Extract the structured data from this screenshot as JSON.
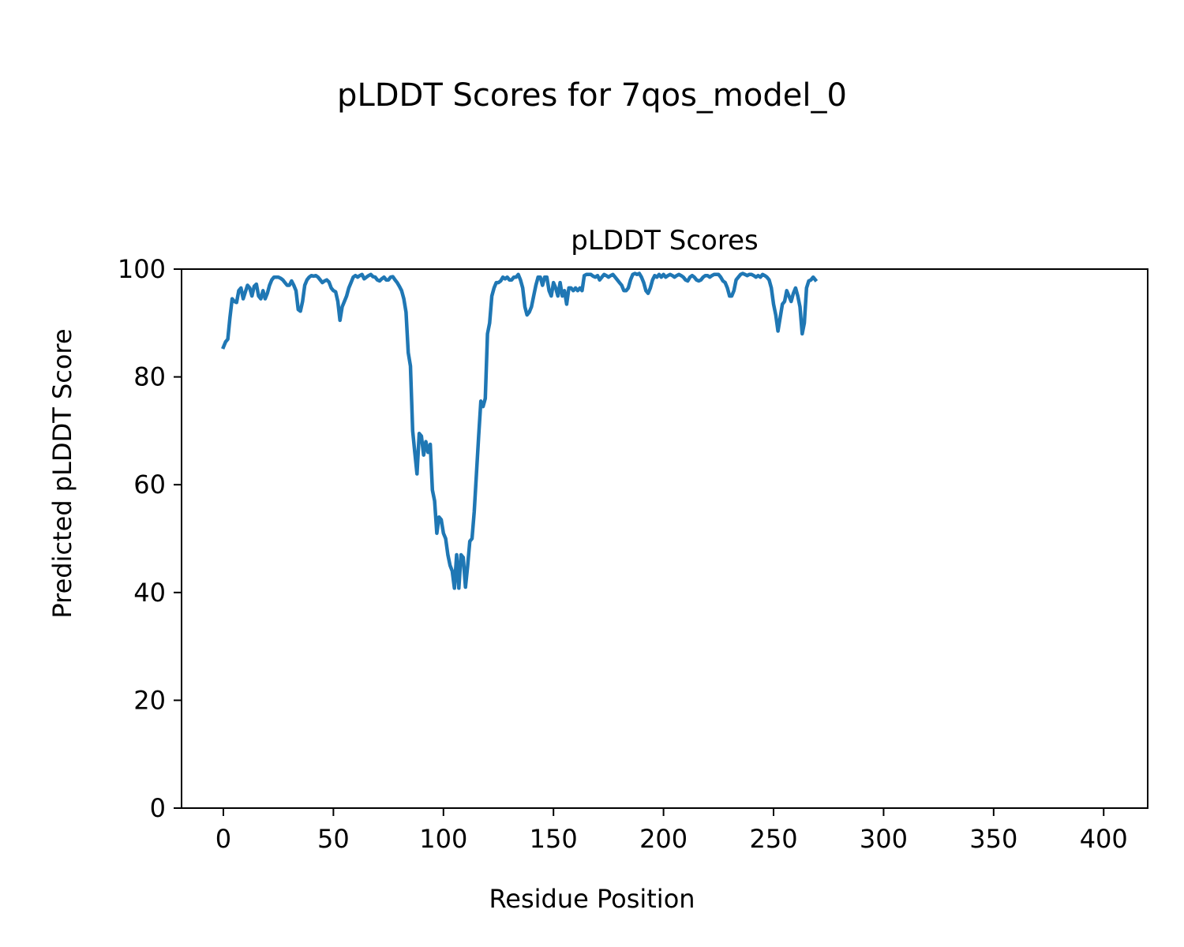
{
  "chart_data": {
    "type": "line",
    "suptitle": "pLDDT Scores for 7qos_model_0",
    "title": "pLDDT Scores",
    "xlabel": "Residue Position",
    "ylabel": "Predicted pLDDT Score",
    "xlim": [
      -19,
      420
    ],
    "ylim": [
      0,
      100
    ],
    "xticks": [
      0,
      50,
      100,
      150,
      200,
      250,
      300,
      350,
      400
    ],
    "yticks": [
      0,
      20,
      40,
      60,
      80,
      100
    ],
    "grid": false,
    "line_color": "#1f77b4",
    "series": [
      {
        "points": [
          [
            0,
            85.5
          ],
          [
            1,
            86.5
          ],
          [
            2,
            87
          ],
          [
            3,
            91
          ],
          [
            4,
            94.5
          ],
          [
            5,
            94
          ],
          [
            6,
            93.8
          ],
          [
            7,
            96
          ],
          [
            8,
            96.5
          ],
          [
            9,
            94.5
          ],
          [
            10,
            95.8
          ],
          [
            11,
            97
          ],
          [
            12,
            96.5
          ],
          [
            13,
            95
          ],
          [
            14,
            96.8
          ],
          [
            15,
            97.2
          ],
          [
            16,
            95
          ],
          [
            17,
            94.5
          ],
          [
            18,
            96
          ],
          [
            19,
            94.5
          ],
          [
            20,
            95.5
          ],
          [
            21,
            97
          ],
          [
            22,
            98
          ],
          [
            23,
            98.5
          ],
          [
            24,
            98.5
          ],
          [
            25,
            98.5
          ],
          [
            26,
            98.3
          ],
          [
            27,
            98
          ],
          [
            28,
            97.5
          ],
          [
            29,
            97
          ],
          [
            30,
            97
          ],
          [
            31,
            97.8
          ],
          [
            32,
            97
          ],
          [
            33,
            96
          ],
          [
            34,
            92.5
          ],
          [
            35,
            92.2
          ],
          [
            36,
            94
          ],
          [
            37,
            97
          ],
          [
            38,
            98
          ],
          [
            39,
            98.5
          ],
          [
            40,
            98.8
          ],
          [
            41,
            98.7
          ],
          [
            42,
            98.8
          ],
          [
            43,
            98.5
          ],
          [
            44,
            98
          ],
          [
            45,
            97.5
          ],
          [
            46,
            97.8
          ],
          [
            47,
            98
          ],
          [
            48,
            97.6
          ],
          [
            49,
            96.5
          ],
          [
            50,
            96
          ],
          [
            51,
            95.8
          ],
          [
            52,
            94
          ],
          [
            53,
            90.5
          ],
          [
            54,
            93
          ],
          [
            55,
            94
          ],
          [
            56,
            95
          ],
          [
            57,
            96.5
          ],
          [
            58,
            97.5
          ],
          [
            59,
            98.5
          ],
          [
            60,
            98.8
          ],
          [
            61,
            98.5
          ],
          [
            62,
            98.8
          ],
          [
            63,
            99
          ],
          [
            64,
            98.2
          ],
          [
            65,
            98.5
          ],
          [
            66,
            98.8
          ],
          [
            67,
            99
          ],
          [
            68,
            98.6
          ],
          [
            69,
            98.5
          ],
          [
            70,
            98
          ],
          [
            71,
            97.8
          ],
          [
            72,
            98.2
          ],
          [
            73,
            98.5
          ],
          [
            74,
            98
          ],
          [
            75,
            98
          ],
          [
            76,
            98.5
          ],
          [
            77,
            98.6
          ],
          [
            78,
            98
          ],
          [
            79,
            97.5
          ],
          [
            80,
            96.8
          ],
          [
            81,
            96
          ],
          [
            82,
            94.5
          ],
          [
            83,
            92
          ],
          [
            84,
            84.5
          ],
          [
            85,
            82
          ],
          [
            86,
            70
          ],
          [
            87,
            66
          ],
          [
            88,
            62
          ],
          [
            89,
            69.5
          ],
          [
            90,
            69
          ],
          [
            91,
            65.5
          ],
          [
            92,
            68
          ],
          [
            93,
            66
          ],
          [
            94,
            67.5
          ],
          [
            95,
            59
          ],
          [
            96,
            57
          ],
          [
            97,
            51
          ],
          [
            98,
            54
          ],
          [
            99,
            53.5
          ],
          [
            100,
            51
          ],
          [
            101,
            50
          ],
          [
            102,
            47
          ],
          [
            103,
            45
          ],
          [
            104,
            44
          ],
          [
            105,
            40.8
          ],
          [
            106,
            47
          ],
          [
            107,
            40.8
          ],
          [
            108,
            47
          ],
          [
            109,
            46.5
          ],
          [
            110,
            41
          ],
          [
            111,
            45
          ],
          [
            112,
            49.5
          ],
          [
            113,
            50
          ],
          [
            114,
            55
          ],
          [
            115,
            62
          ],
          [
            116,
            69
          ],
          [
            117,
            75.5
          ],
          [
            118,
            74.5
          ],
          [
            119,
            76
          ],
          [
            120,
            88
          ],
          [
            121,
            90
          ],
          [
            122,
            95
          ],
          [
            123,
            96.5
          ],
          [
            124,
            97.5
          ],
          [
            125,
            97.5
          ],
          [
            126,
            97.8
          ],
          [
            127,
            98.5
          ],
          [
            128,
            98.2
          ],
          [
            129,
            98.5
          ],
          [
            130,
            98
          ],
          [
            131,
            98
          ],
          [
            132,
            98.5
          ],
          [
            133,
            98.5
          ],
          [
            134,
            99
          ],
          [
            135,
            98
          ],
          [
            136,
            96.5
          ],
          [
            137,
            93
          ],
          [
            138,
            91.5
          ],
          [
            139,
            92
          ],
          [
            140,
            93
          ],
          [
            141,
            95
          ],
          [
            142,
            97
          ],
          [
            143,
            98.5
          ],
          [
            144,
            98.5
          ],
          [
            145,
            97
          ],
          [
            146,
            98.5
          ],
          [
            147,
            98.5
          ],
          [
            148,
            96
          ],
          [
            149,
            95
          ],
          [
            150,
            97.5
          ],
          [
            151,
            96.5
          ],
          [
            152,
            95
          ],
          [
            153,
            97.5
          ],
          [
            154,
            95
          ],
          [
            155,
            96
          ],
          [
            156,
            93.5
          ],
          [
            157,
            96.5
          ],
          [
            158,
            96.5
          ],
          [
            159,
            96
          ],
          [
            160,
            96.5
          ],
          [
            161,
            96
          ],
          [
            162,
            96.5
          ],
          [
            163,
            96
          ],
          [
            164,
            98.8
          ],
          [
            165,
            99
          ],
          [
            166,
            99
          ],
          [
            167,
            99
          ],
          [
            168,
            98.7
          ],
          [
            169,
            98.5
          ],
          [
            170,
            98.8
          ],
          [
            171,
            98
          ],
          [
            172,
            98.5
          ],
          [
            173,
            99
          ],
          [
            174,
            98.8
          ],
          [
            175,
            98.5
          ],
          [
            176,
            98.8
          ],
          [
            177,
            99
          ],
          [
            178,
            98.5
          ],
          [
            179,
            98
          ],
          [
            180,
            97.5
          ],
          [
            181,
            97
          ],
          [
            182,
            96
          ],
          [
            183,
            96
          ],
          [
            184,
            96.5
          ],
          [
            185,
            98
          ],
          [
            186,
            99
          ],
          [
            187,
            99.2
          ],
          [
            188,
            99
          ],
          [
            189,
            99.2
          ],
          [
            190,
            98.5
          ],
          [
            191,
            97.5
          ],
          [
            192,
            96
          ],
          [
            193,
            95.5
          ],
          [
            194,
            96.5
          ],
          [
            195,
            98
          ],
          [
            196,
            98.8
          ],
          [
            197,
            98.5
          ],
          [
            198,
            99
          ],
          [
            199,
            98.5
          ],
          [
            200,
            99
          ],
          [
            201,
            98.5
          ],
          [
            202,
            98.8
          ],
          [
            203,
            99
          ],
          [
            204,
            98.8
          ],
          [
            205,
            98.5
          ],
          [
            206,
            98.8
          ],
          [
            207,
            99
          ],
          [
            208,
            98.8
          ],
          [
            209,
            98.5
          ],
          [
            210,
            98
          ],
          [
            211,
            97.8
          ],
          [
            212,
            98.5
          ],
          [
            213,
            98.8
          ],
          [
            214,
            98.5
          ],
          [
            215,
            98
          ],
          [
            216,
            97.8
          ],
          [
            217,
            98
          ],
          [
            218,
            98.5
          ],
          [
            219,
            98.8
          ],
          [
            220,
            98.8
          ],
          [
            221,
            98.5
          ],
          [
            222,
            98.8
          ],
          [
            223,
            99
          ],
          [
            224,
            99
          ],
          [
            225,
            99
          ],
          [
            226,
            98.5
          ],
          [
            227,
            97.8
          ],
          [
            228,
            97.5
          ],
          [
            229,
            96.5
          ],
          [
            230,
            95
          ],
          [
            231,
            95
          ],
          [
            232,
            96
          ],
          [
            233,
            98
          ],
          [
            234,
            98.5
          ],
          [
            235,
            99
          ],
          [
            236,
            99.2
          ],
          [
            237,
            99
          ],
          [
            238,
            98.8
          ],
          [
            239,
            99
          ],
          [
            240,
            99
          ],
          [
            241,
            98.8
          ],
          [
            242,
            98.5
          ],
          [
            243,
            98.8
          ],
          [
            244,
            98.5
          ],
          [
            245,
            99
          ],
          [
            246,
            98.8
          ],
          [
            247,
            98.5
          ],
          [
            248,
            98
          ],
          [
            249,
            96.5
          ],
          [
            250,
            93.5
          ],
          [
            251,
            91.5
          ],
          [
            252,
            88.5
          ],
          [
            253,
            91
          ],
          [
            254,
            93.5
          ],
          [
            255,
            94
          ],
          [
            256,
            96
          ],
          [
            257,
            95
          ],
          [
            258,
            94
          ],
          [
            259,
            95.5
          ],
          [
            260,
            96.5
          ],
          [
            261,
            95
          ],
          [
            262,
            93
          ],
          [
            263,
            88
          ],
          [
            264,
            90
          ],
          [
            265,
            96.5
          ],
          [
            266,
            97.8
          ],
          [
            267,
            98
          ],
          [
            268,
            98.5
          ],
          [
            269,
            98
          ]
        ]
      }
    ]
  }
}
